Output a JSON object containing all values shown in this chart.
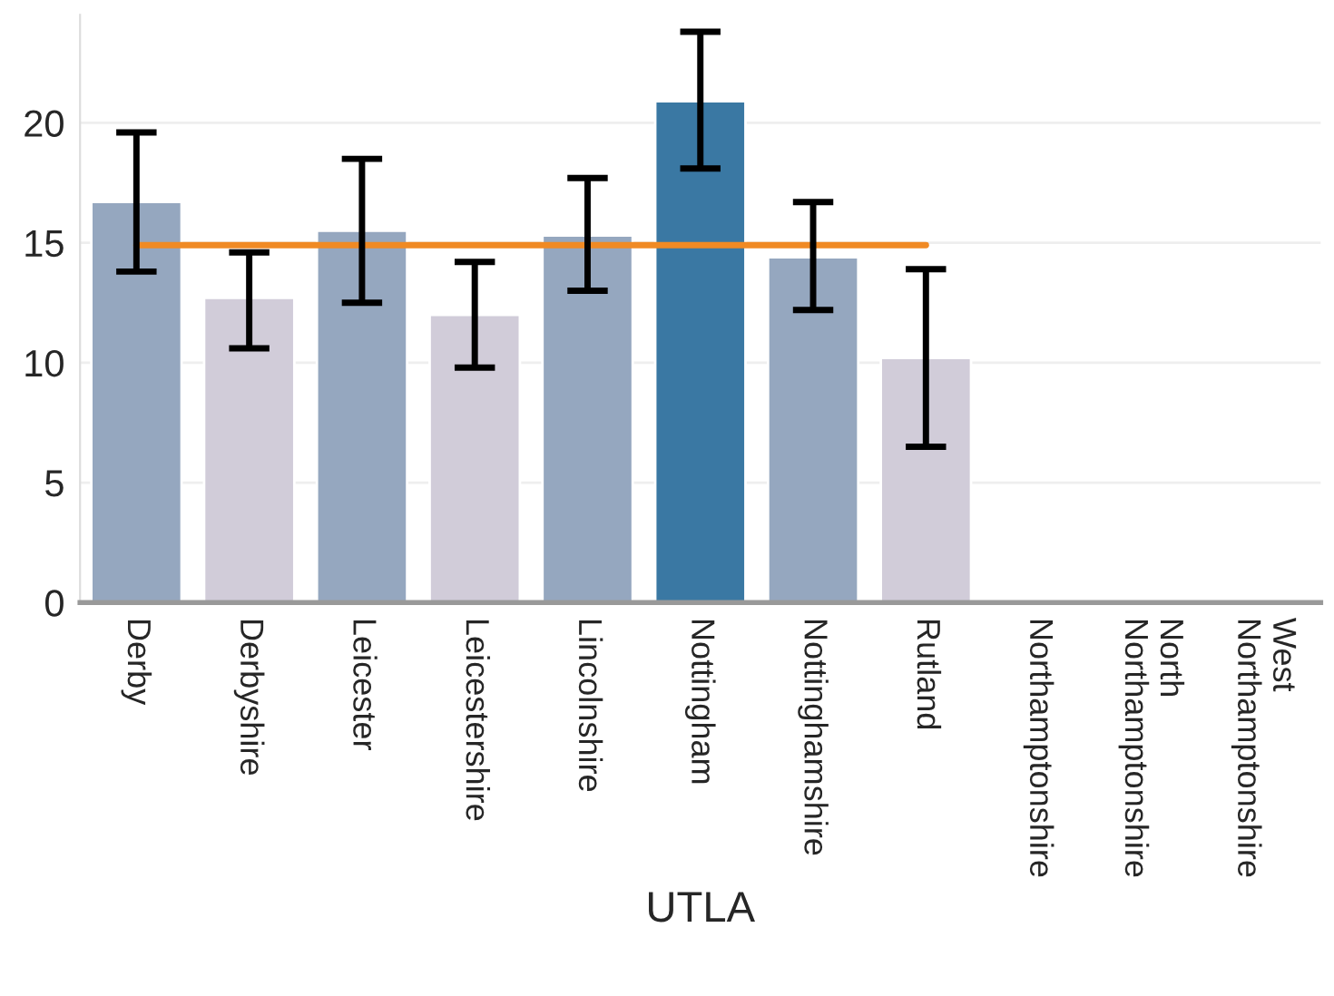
{
  "chart_data": {
    "type": "bar",
    "xlabel": "UTLA",
    "categories": [
      "Derby",
      "Derbyshire",
      "Leicester",
      "Leicestershire",
      "Lincolnshire",
      "Nottingham",
      "Nottinghamshire",
      "Rutland",
      "Northamptonshire",
      "North\nNorthamptonshire",
      "West\nNorthamptonshire"
    ],
    "series": [
      {
        "values": [
          16.7,
          12.7,
          15.5,
          12.0,
          15.3,
          20.9,
          14.4,
          10.2,
          null,
          null,
          null
        ],
        "colors": [
          "#95a7bf",
          "#d1ccd9",
          "#95a7bf",
          "#d1ccd9",
          "#95a7bf",
          "#3a78a3",
          "#95a7bf",
          "#d1ccd9",
          "#95a7bf",
          "#95a7bf",
          "#95a7bf"
        ],
        "errors": [
          [
            13.8,
            19.6
          ],
          [
            10.6,
            14.6
          ],
          [
            12.5,
            18.5
          ],
          [
            9.8,
            14.2
          ],
          [
            13.0,
            17.7
          ],
          [
            18.1,
            23.8
          ],
          [
            12.2,
            16.7
          ],
          [
            6.5,
            13.9
          ],
          null,
          null,
          null
        ]
      },
      {
        "type": "line",
        "color": "#f08a24",
        "values": [
          14.9,
          14.9,
          14.9,
          14.9,
          14.9,
          14.9,
          14.9,
          14.9,
          null,
          null,
          null
        ]
      }
    ],
    "ylim": [
      0,
      24.5
    ],
    "yticks": [
      0,
      5,
      10,
      15,
      20
    ],
    "grid": "y"
  }
}
